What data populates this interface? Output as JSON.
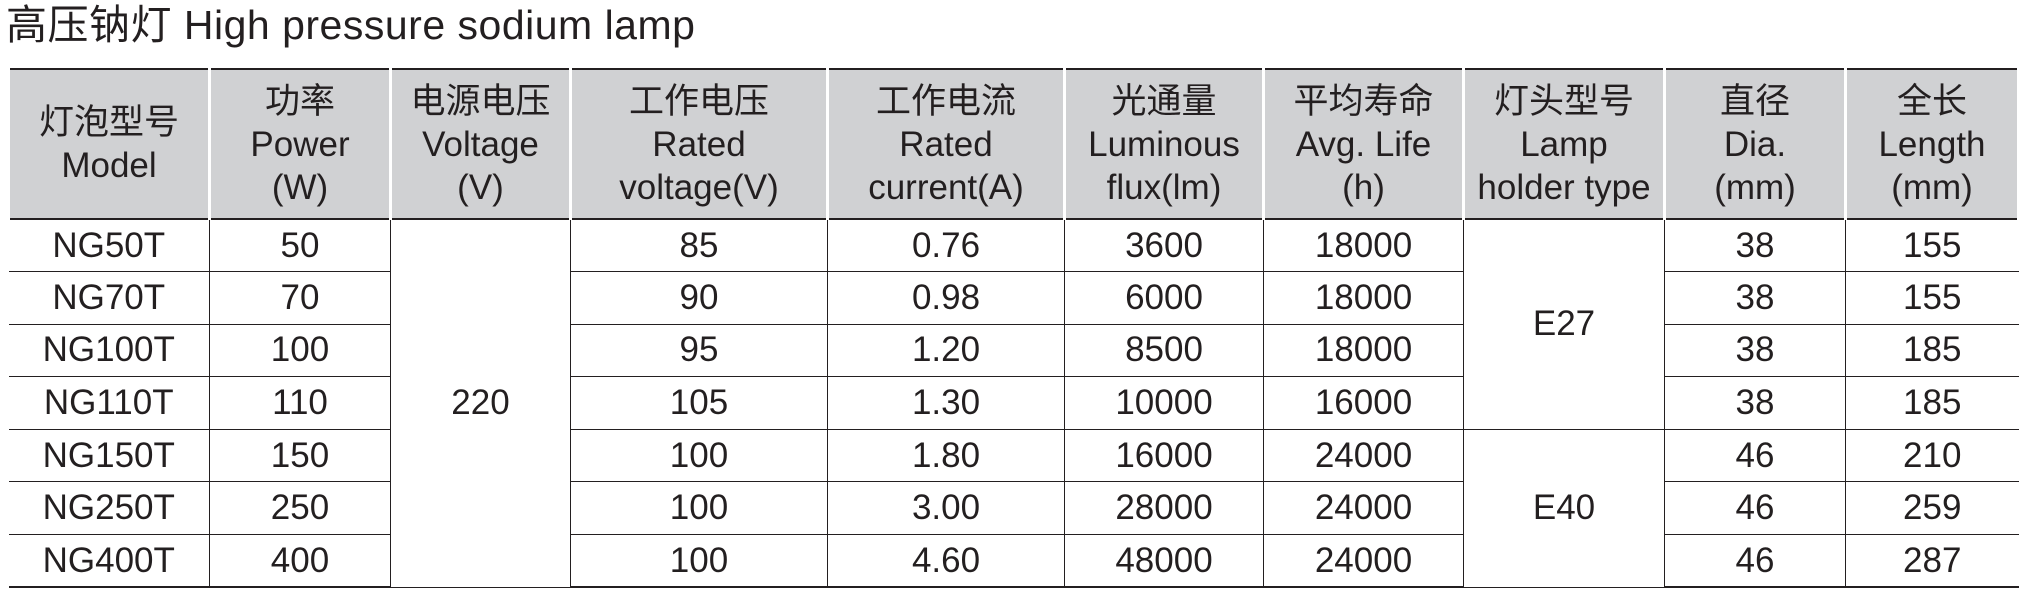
{
  "title": "高压钠灯 High pressure sodium lamp",
  "table": {
    "headers": [
      {
        "lines": [
          "灯泡型号",
          "Model"
        ]
      },
      {
        "lines": [
          "功率",
          "Power",
          "(W)"
        ]
      },
      {
        "lines": [
          "电源电压",
          "Voltage",
          "(V)"
        ]
      },
      {
        "lines": [
          "工作电压",
          "Rated",
          "voltage(V)"
        ]
      },
      {
        "lines": [
          "工作电流",
          "Rated",
          "current(A)"
        ]
      },
      {
        "lines": [
          "光通量",
          "Luminous",
          "flux(lm)"
        ]
      },
      {
        "lines": [
          "平均寿命",
          "Avg. Life",
          "(h)"
        ]
      },
      {
        "lines": [
          "灯头型号",
          "Lamp",
          "holder type"
        ]
      },
      {
        "lines": [
          "直径",
          "Dia.",
          "(mm)"
        ]
      },
      {
        "lines": [
          "全长",
          "Length",
          "(mm)"
        ]
      }
    ],
    "supply_voltage": "220",
    "holder_groups": [
      "E27",
      "E40"
    ],
    "rows": [
      {
        "model": "NG50T",
        "power": "50",
        "rated_voltage": "85",
        "rated_current": "0.76",
        "flux": "3600",
        "life": "18000",
        "dia": "38",
        "length": "155"
      },
      {
        "model": "NG70T",
        "power": "70",
        "rated_voltage": "90",
        "rated_current": "0.98",
        "flux": "6000",
        "life": "18000",
        "dia": "38",
        "length": "155"
      },
      {
        "model": "NG100T",
        "power": "100",
        "rated_voltage": "95",
        "rated_current": "1.20",
        "flux": "8500",
        "life": "18000",
        "dia": "38",
        "length": "185"
      },
      {
        "model": "NG110T",
        "power": "110",
        "rated_voltage": "105",
        "rated_current": "1.30",
        "flux": "10000",
        "life": "16000",
        "dia": "38",
        "length": "185"
      },
      {
        "model": "NG150T",
        "power": "150",
        "rated_voltage": "100",
        "rated_current": "1.80",
        "flux": "16000",
        "life": "24000",
        "dia": "46",
        "length": "210"
      },
      {
        "model": "NG250T",
        "power": "250",
        "rated_voltage": "100",
        "rated_current": "3.00",
        "flux": "28000",
        "life": "24000",
        "dia": "46",
        "length": "259"
      },
      {
        "model": "NG400T",
        "power": "400",
        "rated_voltage": "100",
        "rated_current": "4.60",
        "flux": "48000",
        "life": "24000",
        "dia": "46",
        "length": "287"
      }
    ]
  }
}
